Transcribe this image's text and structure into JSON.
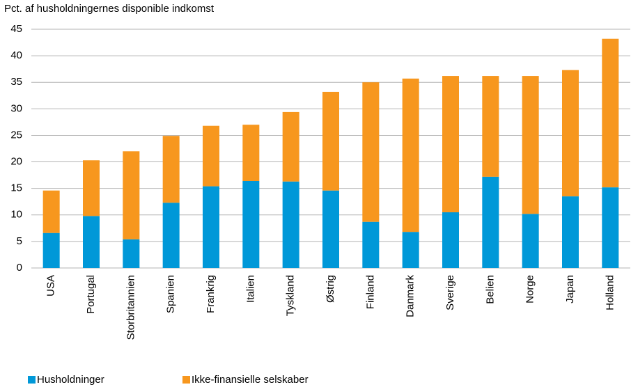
{
  "chart_data": {
    "type": "stacked-bar",
    "title": "Pct. af husholdningernes disponible indkomst",
    "categories": [
      "USA",
      "Portugal",
      "Storbritannien",
      "Spanien",
      "Frankrig",
      "Italien",
      "Tyskland",
      "Østrig",
      "Finland",
      "Danmark",
      "Sverige",
      "Belien",
      "Norge",
      "Japan",
      "Holland"
    ],
    "series": [
      {
        "name": "Husholdninger",
        "color": "#0098d8",
        "values": [
          6.6,
          9.8,
          5.4,
          12.3,
          15.4,
          16.4,
          16.3,
          14.6,
          8.7,
          6.8,
          10.5,
          17.2,
          10.2,
          13.5,
          15.2
        ]
      },
      {
        "name": "Ikke-finansielle selskaber",
        "color": "#f7971e",
        "values": [
          8.0,
          10.5,
          16.6,
          12.6,
          11.4,
          10.6,
          13.1,
          18.6,
          26.3,
          28.9,
          25.7,
          19.0,
          26.0,
          23.8,
          28.0
        ]
      }
    ],
    "ylim": [
      0,
      45
    ],
    "yticks": [
      0,
      5,
      10,
      15,
      20,
      25,
      30,
      35,
      40,
      45
    ],
    "grid": true
  }
}
